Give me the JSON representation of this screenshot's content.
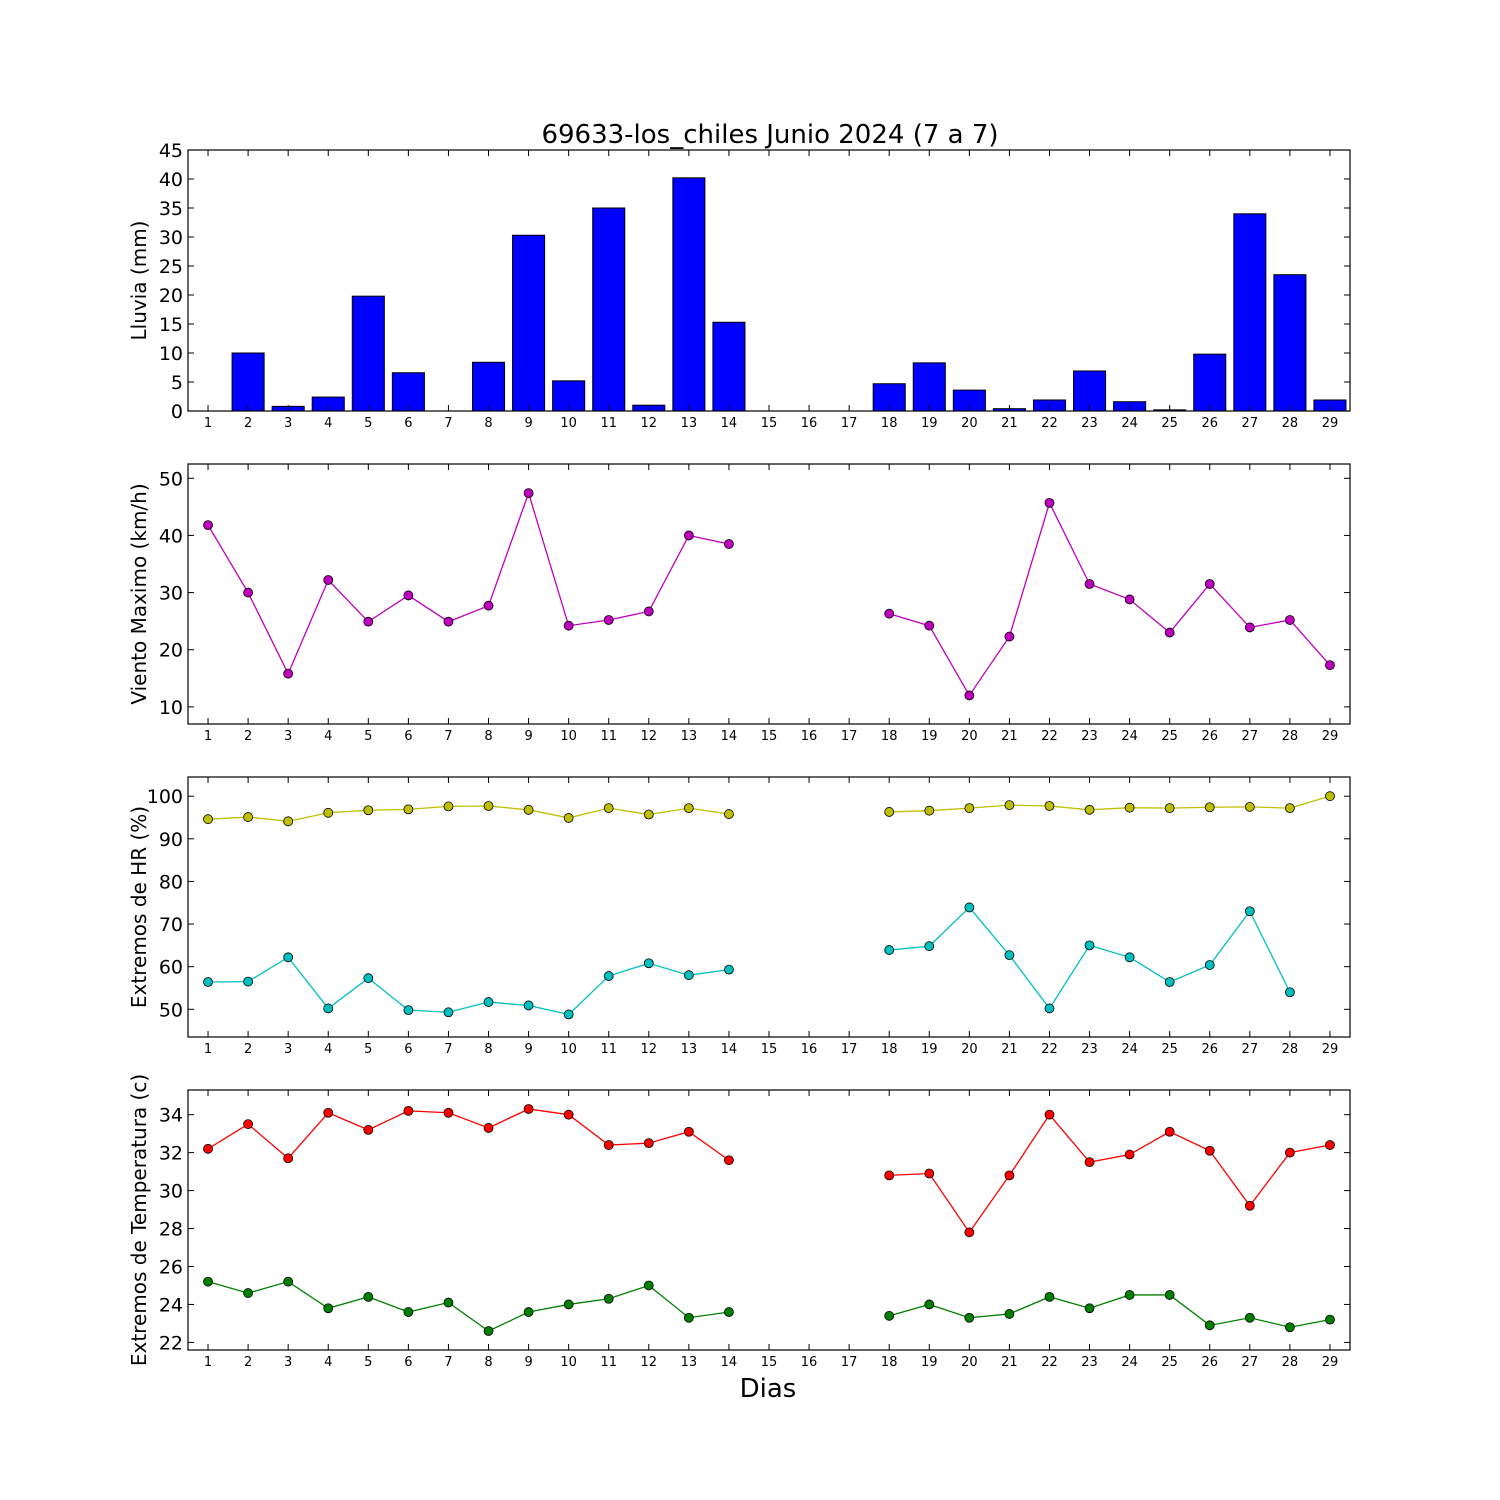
{
  "title": "69633-los_chiles Junio 2024  (7 a 7)",
  "xlabel": "Dias",
  "colors": {
    "rain": "#0000ff",
    "wind": "#bf00bf",
    "hr_max": "#bfbf00",
    "hr_min": "#00bfbf",
    "t_max": "#ff0000",
    "t_min": "#008000"
  },
  "chart_data": [
    {
      "type": "bar",
      "ylabel": "Lluvia (mm)",
      "ylim": [
        0,
        45
      ],
      "yticks": [
        0,
        5,
        10,
        15,
        20,
        25,
        30,
        35,
        40,
        45
      ],
      "x": [
        1,
        2,
        3,
        4,
        5,
        6,
        7,
        8,
        9,
        10,
        11,
        12,
        13,
        14,
        15,
        16,
        17,
        18,
        19,
        20,
        21,
        22,
        23,
        24,
        25,
        26,
        27,
        28,
        29
      ],
      "xticks": [
        1,
        2,
        3,
        4,
        5,
        6,
        7,
        8,
        9,
        10,
        11,
        12,
        13,
        14,
        15,
        16,
        17,
        18,
        19,
        20,
        21,
        22,
        23,
        24,
        25,
        26,
        27,
        28,
        29
      ],
      "series": [
        {
          "values": [
            0,
            10,
            0.8,
            2.4,
            19.8,
            6.6,
            0,
            8.4,
            30.3,
            5.2,
            35,
            1,
            40.2,
            15.3,
            0,
            0,
            0,
            4.7,
            8.3,
            3.6,
            0.4,
            1.9,
            6.9,
            1.6,
            0.2,
            9.8,
            34,
            23.5,
            1.9
          ]
        }
      ],
      "grid": false
    },
    {
      "type": "line",
      "ylabel": "Viento Maximo (km/h)",
      "ylim": [
        7,
        52.5
      ],
      "yticks": [
        10,
        20,
        30,
        40,
        50
      ],
      "x": [
        1,
        2,
        3,
        4,
        5,
        6,
        7,
        8,
        9,
        10,
        11,
        12,
        13,
        14,
        15,
        16,
        17,
        18,
        19,
        20,
        21,
        22,
        23,
        24,
        25,
        26,
        27,
        28,
        29
      ],
      "xticks": [
        1,
        2,
        3,
        4,
        5,
        6,
        7,
        8,
        9,
        10,
        11,
        12,
        13,
        14,
        15,
        16,
        17,
        18,
        19,
        20,
        21,
        22,
        23,
        24,
        25,
        26,
        27,
        28,
        29
      ],
      "series": [
        {
          "values": [
            41.8,
            30.0,
            15.8,
            32.2,
            24.9,
            29.5,
            24.9,
            27.7,
            47.4,
            24.2,
            25.2,
            26.7,
            40.0,
            38.5,
            null,
            null,
            null,
            26.3,
            24.2,
            12.0,
            22.3,
            45.7,
            31.5,
            28.8,
            23.0,
            31.5,
            23.9,
            25.2,
            17.3
          ]
        }
      ],
      "grid": false
    },
    {
      "type": "line",
      "ylabel": "Extremos de HR (%)",
      "ylim": [
        43.5,
        104.5
      ],
      "yticks": [
        50,
        60,
        70,
        80,
        90,
        100
      ],
      "x": [
        1,
        2,
        3,
        4,
        5,
        6,
        7,
        8,
        9,
        10,
        11,
        12,
        13,
        14,
        15,
        16,
        17,
        18,
        19,
        20,
        21,
        22,
        23,
        24,
        25,
        26,
        27,
        28,
        29
      ],
      "xticks": [
        1,
        2,
        3,
        4,
        5,
        6,
        7,
        8,
        9,
        10,
        11,
        12,
        13,
        14,
        15,
        16,
        17,
        18,
        19,
        20,
        21,
        22,
        23,
        24,
        25,
        26,
        27,
        28,
        29
      ],
      "series": [
        {
          "values": [
            94.6,
            95.1,
            94.1,
            96.1,
            96.7,
            96.9,
            97.6,
            97.7,
            96.8,
            94.9,
            97.2,
            95.7,
            97.2,
            95.8,
            null,
            null,
            null,
            96.3,
            96.6,
            97.2,
            97.9,
            97.7,
            96.8,
            97.3,
            97.2,
            97.4,
            97.5,
            97.2,
            100.0
          ]
        },
        {
          "values": [
            56.4,
            56.5,
            62.2,
            50.2,
            57.3,
            49.8,
            49.3,
            51.7,
            50.9,
            48.8,
            57.8,
            60.8,
            58.0,
            59.3,
            null,
            null,
            null,
            63.9,
            64.8,
            73.9,
            62.7,
            50.2,
            65.0,
            62.2,
            56.4,
            60.4,
            73.0,
            54.0,
            null
          ]
        }
      ],
      "grid": false
    },
    {
      "type": "line",
      "ylabel": "Extremos de Temperatura (c)",
      "ylim": [
        21.6,
        35.3
      ],
      "yticks": [
        22,
        24,
        26,
        28,
        30,
        32,
        34
      ],
      "x": [
        1,
        2,
        3,
        4,
        5,
        6,
        7,
        8,
        9,
        10,
        11,
        12,
        13,
        14,
        15,
        16,
        17,
        18,
        19,
        20,
        21,
        22,
        23,
        24,
        25,
        26,
        27,
        28,
        29
      ],
      "xticks": [
        1,
        2,
        3,
        4,
        5,
        6,
        7,
        8,
        9,
        10,
        11,
        12,
        13,
        14,
        15,
        16,
        17,
        18,
        19,
        20,
        21,
        22,
        23,
        24,
        25,
        26,
        27,
        28,
        29
      ],
      "series": [
        {
          "values": [
            32.2,
            33.5,
            31.7,
            34.1,
            33.2,
            34.2,
            34.1,
            33.3,
            34.3,
            34.0,
            32.4,
            32.5,
            33.1,
            31.6,
            null,
            null,
            null,
            30.8,
            30.9,
            27.8,
            30.8,
            34.0,
            31.5,
            31.9,
            33.1,
            32.1,
            29.2,
            32.0,
            32.4
          ]
        },
        {
          "values": [
            25.2,
            24.6,
            25.2,
            23.8,
            24.4,
            23.6,
            24.1,
            22.6,
            23.6,
            24.0,
            24.3,
            25.0,
            23.3,
            23.6,
            null,
            null,
            null,
            23.4,
            24.0,
            23.3,
            23.5,
            24.4,
            23.8,
            24.5,
            24.5,
            22.9,
            23.3,
            22.8,
            23.2
          ]
        }
      ],
      "grid": false
    }
  ]
}
